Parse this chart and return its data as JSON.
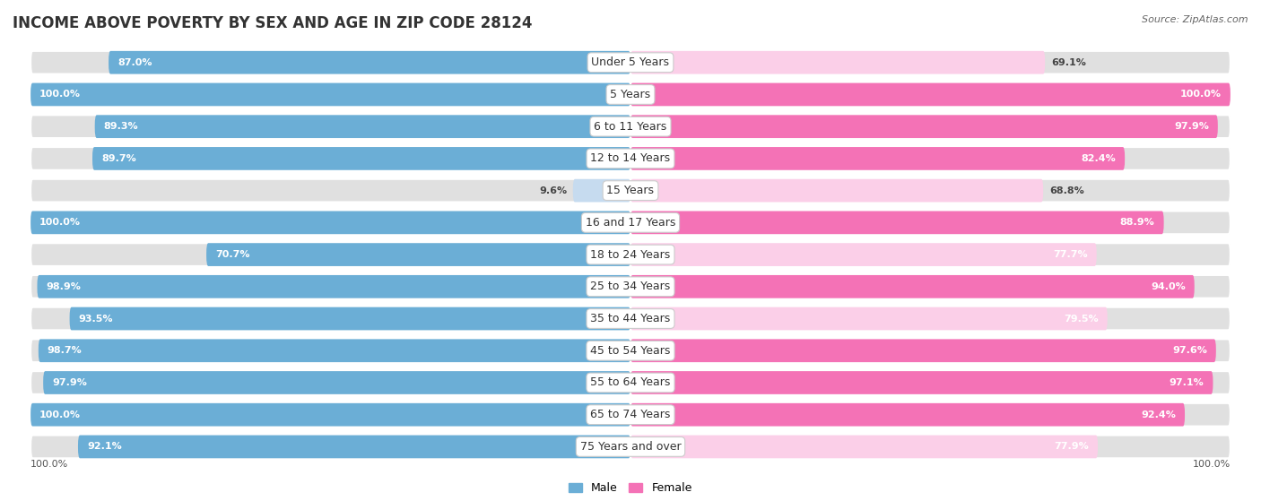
{
  "title": "INCOME ABOVE POVERTY BY SEX AND AGE IN ZIP CODE 28124",
  "source": "Source: ZipAtlas.com",
  "categories": [
    "Under 5 Years",
    "5 Years",
    "6 to 11 Years",
    "12 to 14 Years",
    "15 Years",
    "16 and 17 Years",
    "18 to 24 Years",
    "25 to 34 Years",
    "35 to 44 Years",
    "45 to 54 Years",
    "55 to 64 Years",
    "65 to 74 Years",
    "75 Years and over"
  ],
  "male_values": [
    87.0,
    100.0,
    89.3,
    89.7,
    9.6,
    100.0,
    70.7,
    98.9,
    93.5,
    98.7,
    97.9,
    100.0,
    92.1
  ],
  "female_values": [
    69.1,
    100.0,
    97.9,
    82.4,
    68.8,
    88.9,
    77.7,
    94.0,
    79.5,
    97.6,
    97.1,
    92.4,
    77.9
  ],
  "male_color_high": "#6BAED6",
  "male_color_low": "#C6DBEF",
  "female_color_high": "#F472B6",
  "female_color_low": "#FBCFE8",
  "bg_color": "#FFFFFF",
  "bar_bg_color": "#E0E0E0",
  "title_fontsize": 12,
  "label_fontsize": 9,
  "value_fontsize": 8,
  "legend_fontsize": 9,
  "max_val": 100.0,
  "x_scale_label": "100.0%",
  "male_high_threshold": 50,
  "female_high_threshold": 80
}
